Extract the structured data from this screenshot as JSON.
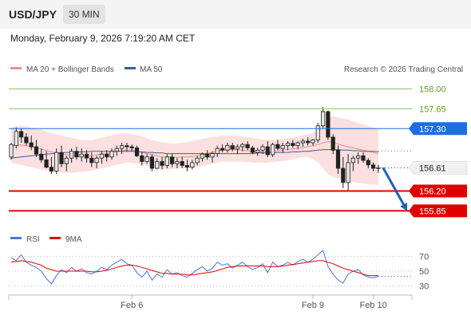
{
  "header": {
    "symbol": "USD/JPY",
    "timeframe": "30 MIN"
  },
  "datetime": "Monday, February 9, 2026 7:19:20 AM CET",
  "legend": {
    "ma20_label": "MA 20 + Bollinger Bands",
    "ma50_label": "MA 50",
    "copyright": "Research © 2026 Trading Central",
    "rsi_label": "RSI",
    "ma9_label": "9MA"
  },
  "colors": {
    "up": "#e8e8e8",
    "down": "#222222",
    "band": "#fbd9d9",
    "ma20": "#f08c8c",
    "ma50": "#3a5f9e",
    "resistance": "#8dc26c",
    "pivot": "#1b6fe0",
    "support": "#e00000",
    "rsi": "#4a77d4",
    "ma9": "#e00000"
  },
  "chart_data": {
    "type": "candlestick",
    "ylim": [
      155.63,
      158.19
    ],
    "x_ticks": [
      "Feb 6",
      "Feb 9",
      "Feb 10"
    ],
    "levels": [
      {
        "label": "158.00",
        "value": 158.0,
        "kind": "resistance"
      },
      {
        "label": "157.65",
        "value": 157.65,
        "kind": "resistance"
      },
      {
        "label": "157.30",
        "value": 157.3,
        "kind": "pivot"
      },
      {
        "label": "156.20",
        "value": 156.2,
        "kind": "support"
      },
      {
        "label": "155.85",
        "value": 155.85,
        "kind": "support"
      }
    ],
    "current_price": {
      "label": "156.61",
      "value": 156.61
    },
    "candles": [
      [
        156.8,
        157.05,
        156.75,
        157.02
      ],
      [
        157.0,
        157.32,
        156.95,
        157.25
      ],
      [
        157.25,
        157.3,
        157.05,
        157.15
      ],
      [
        157.15,
        157.22,
        157.0,
        157.05
      ],
      [
        157.05,
        157.18,
        156.92,
        156.98
      ],
      [
        156.98,
        157.1,
        156.8,
        156.85
      ],
      [
        156.85,
        156.95,
        156.7,
        156.75
      ],
      [
        156.75,
        156.9,
        156.6,
        156.62
      ],
      [
        156.62,
        156.8,
        156.5,
        156.55
      ],
      [
        156.55,
        156.95,
        156.5,
        156.88
      ],
      [
        156.88,
        157.0,
        156.62,
        156.68
      ],
      [
        156.68,
        156.82,
        156.55,
        156.78
      ],
      [
        156.78,
        156.95,
        156.7,
        156.9
      ],
      [
        156.9,
        156.98,
        156.75,
        156.8
      ],
      [
        156.8,
        156.95,
        156.72,
        156.85
      ],
      [
        156.85,
        156.92,
        156.7,
        156.78
      ],
      [
        156.78,
        156.88,
        156.62,
        156.7
      ],
      [
        156.7,
        156.82,
        156.6,
        156.78
      ],
      [
        156.78,
        156.9,
        156.68,
        156.85
      ],
      [
        156.85,
        156.92,
        156.72,
        156.8
      ],
      [
        156.8,
        156.95,
        156.75,
        156.9
      ],
      [
        156.9,
        157.0,
        156.82,
        156.95
      ],
      [
        156.95,
        157.05,
        156.85,
        157.0
      ],
      [
        157.0,
        157.05,
        156.9,
        156.98
      ],
      [
        156.98,
        157.02,
        156.9,
        156.96
      ],
      [
        156.96,
        157.0,
        156.8,
        156.82
      ],
      [
        156.82,
        156.88,
        156.65,
        156.72
      ],
      [
        156.72,
        156.85,
        156.68,
        156.8
      ],
      [
        156.8,
        156.85,
        156.55,
        156.6
      ],
      [
        156.6,
        156.78,
        156.58,
        156.72
      ],
      [
        156.72,
        156.8,
        156.58,
        156.65
      ],
      [
        156.65,
        156.85,
        156.6,
        156.8
      ],
      [
        156.8,
        156.85,
        156.62,
        156.68
      ],
      [
        156.68,
        156.78,
        156.6,
        156.72
      ],
      [
        156.72,
        156.8,
        156.6,
        156.65
      ],
      [
        156.65,
        156.75,
        156.55,
        156.62
      ],
      [
        156.62,
        156.75,
        156.58,
        156.7
      ],
      [
        156.7,
        156.82,
        156.65,
        156.78
      ],
      [
        156.78,
        156.88,
        156.72,
        156.85
      ],
      [
        156.85,
        156.92,
        156.75,
        156.8
      ],
      [
        156.8,
        156.9,
        156.7,
        156.86
      ],
      [
        156.86,
        157.0,
        156.8,
        156.95
      ],
      [
        156.95,
        157.02,
        156.88,
        156.92
      ],
      [
        156.92,
        157.05,
        156.88,
        157.0
      ],
      [
        157.0,
        157.05,
        156.9,
        156.94
      ],
      [
        156.94,
        157.02,
        156.85,
        156.98
      ],
      [
        156.98,
        157.05,
        156.9,
        157.02
      ],
      [
        157.02,
        157.08,
        156.92,
        156.96
      ],
      [
        156.96,
        157.0,
        156.85,
        156.88
      ],
      [
        156.88,
        156.96,
        156.82,
        156.92
      ],
      [
        156.92,
        157.02,
        156.85,
        156.98
      ],
      [
        156.98,
        157.08,
        156.8,
        156.84
      ],
      [
        156.84,
        157.05,
        156.8,
        157.02
      ],
      [
        157.02,
        157.1,
        156.92,
        156.95
      ],
      [
        156.95,
        157.05,
        156.88,
        157.0
      ],
      [
        157.0,
        157.08,
        156.92,
        157.04
      ],
      [
        157.04,
        157.1,
        156.96,
        157.0
      ],
      [
        157.0,
        157.08,
        156.94,
        157.05
      ],
      [
        157.05,
        157.12,
        156.98,
        157.08
      ],
      [
        157.08,
        157.15,
        157.0,
        157.05
      ],
      [
        157.05,
        157.12,
        157.0,
        157.1
      ],
      [
        157.1,
        157.4,
        157.05,
        157.35
      ],
      [
        157.35,
        157.68,
        157.3,
        157.6
      ],
      [
        157.6,
        157.62,
        157.1,
        157.15
      ],
      [
        157.15,
        157.2,
        156.85,
        156.92
      ],
      [
        156.92,
        157.0,
        156.5,
        156.6
      ],
      [
        156.6,
        156.8,
        156.25,
        156.35
      ],
      [
        156.35,
        156.85,
        156.2,
        156.7
      ],
      [
        156.7,
        156.82,
        156.55,
        156.78
      ],
      [
        156.78,
        156.88,
        156.68,
        156.82
      ],
      [
        156.82,
        156.88,
        156.7,
        156.74
      ],
      [
        156.74,
        156.78,
        156.6,
        156.66
      ],
      [
        156.66,
        156.7,
        156.55,
        156.6
      ],
      [
        156.6,
        156.66,
        156.52,
        156.61
      ]
    ],
    "bollinger": {
      "upper": [
        157.32,
        157.34,
        157.35,
        157.34,
        157.32,
        157.3,
        157.28,
        157.25,
        157.22,
        157.2,
        157.18,
        157.15,
        157.14,
        157.12,
        157.1,
        157.1,
        157.1,
        157.12,
        157.14,
        157.16,
        157.18,
        157.2,
        157.22,
        157.22,
        157.2,
        157.18,
        157.16,
        157.13,
        157.1,
        157.08,
        157.06,
        157.05,
        157.04,
        157.04,
        157.05,
        157.06,
        157.08,
        157.1,
        157.12,
        157.14,
        157.15,
        157.16,
        157.18,
        157.18,
        157.18,
        157.17,
        157.16,
        157.15,
        157.14,
        157.12,
        157.11,
        157.1,
        157.1,
        157.11,
        157.12,
        157.13,
        157.14,
        157.16,
        157.18,
        157.2,
        157.22,
        157.3,
        157.4,
        157.5,
        157.52,
        157.5,
        157.48,
        157.46,
        157.43,
        157.4,
        157.37,
        157.35,
        157.32,
        157.3
      ],
      "lower": [
        156.7,
        156.68,
        156.66,
        156.64,
        156.62,
        156.6,
        156.58,
        156.56,
        156.55,
        156.54,
        156.53,
        156.52,
        156.52,
        156.53,
        156.54,
        156.55,
        156.56,
        156.58,
        156.6,
        156.62,
        156.64,
        156.66,
        156.68,
        156.7,
        156.7,
        156.68,
        156.66,
        156.64,
        156.62,
        156.6,
        156.58,
        156.58,
        156.58,
        156.6,
        156.6,
        156.6,
        156.6,
        156.62,
        156.64,
        156.66,
        156.68,
        156.7,
        156.72,
        156.72,
        156.72,
        156.72,
        156.72,
        156.71,
        156.7,
        156.7,
        156.7,
        156.7,
        156.71,
        156.72,
        156.73,
        156.74,
        156.76,
        156.78,
        156.8,
        156.8,
        156.76,
        156.7,
        156.6,
        156.5,
        156.45,
        156.42,
        156.4,
        156.38,
        156.36,
        156.34,
        156.33,
        156.32,
        156.32,
        156.3
      ],
      "mid": [
        157.0,
        157.01,
        157.01,
        157.0,
        156.98,
        156.96,
        156.94,
        156.91,
        156.89,
        156.87,
        156.85,
        156.84,
        156.83,
        156.82,
        156.81,
        156.81,
        156.82,
        156.84,
        156.85,
        156.86,
        156.88,
        156.9,
        156.91,
        156.92,
        156.92,
        156.9,
        156.88,
        156.86,
        156.84,
        156.82,
        156.8,
        156.8,
        156.79,
        156.79,
        156.8,
        156.8,
        156.81,
        156.82,
        156.84,
        156.86,
        156.88,
        156.9,
        156.92,
        156.93,
        156.93,
        156.93,
        156.92,
        156.91,
        156.9,
        156.89,
        156.89,
        156.89,
        156.9,
        156.91,
        156.92,
        156.93,
        156.94,
        156.95,
        156.96,
        156.98,
        157.0,
        157.02,
        157.05,
        157.07,
        157.06,
        157.03,
        157.0,
        156.98,
        156.96,
        156.94,
        156.92,
        156.9,
        156.88,
        156.86
      ]
    },
    "ma50": [
      156.78,
      156.79,
      156.8,
      156.81,
      156.82,
      156.83,
      156.84,
      156.85,
      156.86,
      156.87,
      156.87,
      156.88,
      156.88,
      156.89,
      156.89,
      156.89,
      156.9,
      156.9,
      156.9,
      156.9,
      156.9,
      156.9,
      156.9,
      156.9,
      156.9,
      156.89,
      156.89,
      156.88,
      156.88,
      156.87,
      156.87,
      156.86,
      156.86,
      156.86,
      156.86,
      156.86,
      156.86,
      156.86,
      156.86,
      156.86,
      156.86,
      156.86,
      156.86,
      156.86,
      156.86,
      156.86,
      156.86,
      156.86,
      156.86,
      156.87,
      156.87,
      156.87,
      156.87,
      156.88,
      156.88,
      156.88,
      156.89,
      156.89,
      156.9,
      156.9,
      156.91,
      156.92,
      156.93,
      156.93,
      156.93,
      156.93,
      156.92,
      156.92,
      156.91,
      156.91,
      156.9,
      156.9,
      156.9,
      156.89
    ],
    "forecast": {
      "from": 156.61,
      "to": 155.85
    },
    "rsi": {
      "ylim": [
        20,
        80
      ],
      "ticks": [
        "70",
        "50",
        "30"
      ],
      "tick_values": [
        70,
        50,
        30
      ],
      "values": [
        68,
        64,
        72,
        62,
        58,
        55,
        50,
        40,
        33,
        44,
        52,
        48,
        55,
        50,
        53,
        48,
        46,
        50,
        55,
        52,
        58,
        62,
        66,
        60,
        58,
        48,
        42,
        50,
        38,
        46,
        42,
        52,
        46,
        48,
        44,
        42,
        47,
        52,
        56,
        50,
        54,
        62,
        58,
        60,
        54,
        58,
        62,
        56,
        52,
        55,
        60,
        48,
        62,
        56,
        58,
        62,
        58,
        63,
        66,
        62,
        66,
        72,
        78,
        56,
        46,
        38,
        34,
        46,
        50,
        52,
        45,
        42,
        41,
        43
      ],
      "ma9": [
        62,
        63,
        64,
        63,
        62,
        60,
        58,
        54,
        52,
        50,
        50,
        50,
        50,
        50,
        50,
        50,
        49,
        49,
        50,
        51,
        53,
        55,
        57,
        58,
        58,
        57,
        55,
        53,
        51,
        49,
        47,
        47,
        46,
        46,
        46,
        45,
        45,
        46,
        47,
        48,
        49,
        51,
        53,
        55,
        56,
        57,
        57,
        57,
        57,
        57,
        57,
        56,
        56,
        56,
        57,
        58,
        59,
        60,
        61,
        62,
        63,
        64,
        64,
        62,
        60,
        57,
        54,
        52,
        50,
        48,
        46,
        44,
        44,
        44
      ]
    }
  }
}
